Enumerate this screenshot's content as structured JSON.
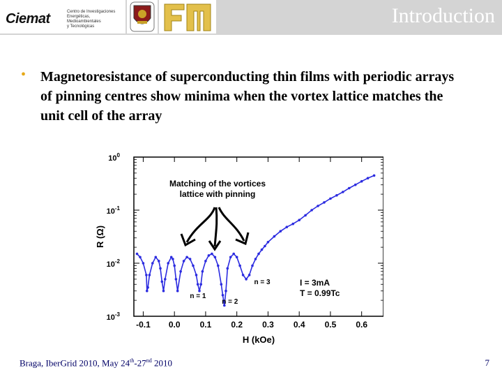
{
  "header": {
    "org_logo_text": "Ciemat",
    "org_name_lines": [
      "Centro de Investigaciones",
      "Energéticas, Medioambientales",
      "y Tecnológicas"
    ],
    "title": "Introduction",
    "colors": {
      "bar": "#d4d4d4",
      "title": "#ffffff"
    }
  },
  "bullet": {
    "text": "Magnetoresistance of superconducting thin films with periodic arrays of pinning centres show minima when the vortex lattice matches the unit cell of the array",
    "marker_color": "#e6a817"
  },
  "footer": {
    "text_before": "Braga, IberGrid 2010, May 24",
    "sup1": "th",
    "dash": "-27",
    "sup2": "nd",
    "text_after": " 2010",
    "page": "7"
  },
  "chart_data": {
    "type": "line",
    "ylabel": "R (Ω)",
    "xlabel": "H (kOe)",
    "y_scale": "log",
    "ylim": [
      0.001,
      1
    ],
    "xlim": [
      -0.13,
      0.67
    ],
    "x_ticks": [
      -0.1,
      0.0,
      0.1,
      0.2,
      0.3,
      0.4,
      0.5,
      0.6
    ],
    "x_tick_labels": [
      "-0.1",
      "0.0",
      "0.1",
      "0.2",
      "0.3",
      "0.4",
      "0.5",
      "0.6"
    ],
    "y_ticks": [
      1,
      0.1,
      0.01,
      0.001
    ],
    "y_tick_base": "10",
    "y_tick_exps": [
      "0",
      "-1",
      "-2",
      "-3"
    ],
    "annotation": {
      "lines": [
        "Matching of the vortices",
        "lattice with pinning"
      ]
    },
    "minima_labels": [
      {
        "label": "n = 1",
        "x": 0.08
      },
      {
        "label": "n = 2",
        "x": 0.16
      },
      {
        "label": "n = 3",
        "x": 0.25
      }
    ],
    "conditions": [
      "I = 3mA",
      "T = 0.99Tc"
    ],
    "series": [
      {
        "color": "#2b2be0",
        "x": [
          -0.12,
          -0.11,
          -0.1,
          -0.09,
          -0.088,
          -0.085,
          -0.08,
          -0.07,
          -0.06,
          -0.05,
          -0.045,
          -0.04,
          -0.035,
          -0.03,
          -0.02,
          -0.01,
          -0.005,
          0.0,
          0.005,
          0.01,
          0.02,
          0.03,
          0.04,
          0.05,
          0.06,
          0.07,
          0.075,
          0.08,
          0.085,
          0.09,
          0.1,
          0.11,
          0.12,
          0.13,
          0.14,
          0.15,
          0.155,
          0.16,
          0.165,
          0.17,
          0.18,
          0.19,
          0.2,
          0.21,
          0.22,
          0.23,
          0.24,
          0.25,
          0.26,
          0.27,
          0.28,
          0.29,
          0.3,
          0.32,
          0.34,
          0.36,
          0.38,
          0.4,
          0.42,
          0.44,
          0.46,
          0.48,
          0.5,
          0.52,
          0.54,
          0.56,
          0.58,
          0.6,
          0.62,
          0.64
        ],
        "y": [
          0.015,
          0.013,
          0.01,
          0.006,
          0.003,
          0.0035,
          0.006,
          0.01,
          0.013,
          0.011,
          0.008,
          0.0045,
          0.003,
          0.005,
          0.01,
          0.013,
          0.012,
          0.009,
          0.005,
          0.003,
          0.007,
          0.011,
          0.013,
          0.012,
          0.009,
          0.006,
          0.004,
          0.003,
          0.004,
          0.007,
          0.011,
          0.014,
          0.015,
          0.013,
          0.009,
          0.004,
          0.0025,
          0.0016,
          0.003,
          0.008,
          0.013,
          0.015,
          0.013,
          0.009,
          0.006,
          0.005,
          0.006,
          0.009,
          0.012,
          0.015,
          0.018,
          0.021,
          0.025,
          0.032,
          0.04,
          0.048,
          0.055,
          0.065,
          0.08,
          0.1,
          0.12,
          0.14,
          0.165,
          0.19,
          0.22,
          0.26,
          0.3,
          0.35,
          0.4,
          0.45
        ]
      }
    ]
  }
}
